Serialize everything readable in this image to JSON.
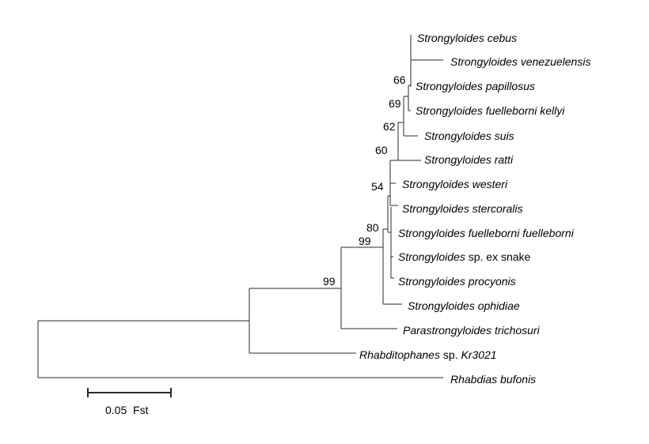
{
  "taxa": [
    {
      "id": "cebus",
      "parts": [
        {
          "text": "Strongyloides cebus",
          "italic": true
        }
      ]
    },
    {
      "id": "venezuelensis",
      "parts": [
        {
          "text": "Strongyloides venezuelensis",
          "italic": true
        }
      ]
    },
    {
      "id": "papillosus",
      "parts": [
        {
          "text": "Strongyloides papillosus",
          "italic": true
        }
      ]
    },
    {
      "id": "fuelleborni-kellyi",
      "parts": [
        {
          "text": "Strongyloides fuelleborni kellyi",
          "italic": true
        }
      ]
    },
    {
      "id": "suis",
      "parts": [
        {
          "text": "Strongyloides suis",
          "italic": true
        }
      ]
    },
    {
      "id": "ratti",
      "parts": [
        {
          "text": "Strongyloides ratti",
          "italic": true
        }
      ]
    },
    {
      "id": "westeri",
      "parts": [
        {
          "text": "Strongyloides westeri",
          "italic": true
        }
      ]
    },
    {
      "id": "stercoralis",
      "parts": [
        {
          "text": "Strongyloides stercoralis",
          "italic": true
        }
      ]
    },
    {
      "id": "fuelleborni-fuelleborni",
      "parts": [
        {
          "text": "Strongyloides fuelleborni fuelleborni",
          "italic": true
        }
      ]
    },
    {
      "id": "sp-ex-snake",
      "parts": [
        {
          "text": "Strongyloides",
          "italic": true
        },
        {
          "text": " sp. ex snake",
          "italic": false
        }
      ]
    },
    {
      "id": "procyonis",
      "parts": [
        {
          "text": "Strongyloides procyonis",
          "italic": true
        }
      ]
    },
    {
      "id": "ophidiae",
      "parts": [
        {
          "text": "Strongyloides ophidiae",
          "italic": true
        }
      ]
    },
    {
      "id": "parastrongyloides",
      "parts": [
        {
          "text": "Parastrongyloides trichosuri",
          "italic": true
        }
      ]
    },
    {
      "id": "rhabditophanes",
      "parts": [
        {
          "text": "Rhabditophanes",
          "italic": true
        },
        {
          "text": " sp. ",
          "italic": false
        },
        {
          "text": "Kr3021",
          "italic": true
        }
      ]
    },
    {
      "id": "rhabdias",
      "parts": [
        {
          "text": "Rhabdias bufonis",
          "italic": true
        }
      ]
    }
  ],
  "support_values": [
    "66",
    "69",
    "62",
    "60",
    "54",
    "80",
    "99",
    "99"
  ],
  "scale_bar": {
    "value": 0.05,
    "label": "0.05  Fst"
  }
}
